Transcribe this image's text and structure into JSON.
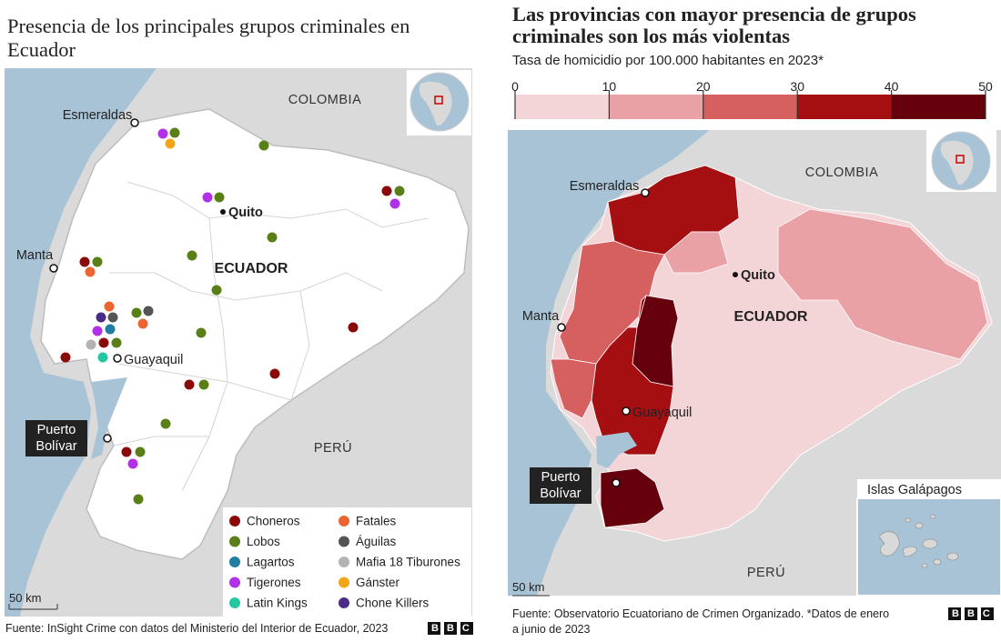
{
  "left_panel": {
    "title": "Presencia de los principales grupos criminales en Ecuador",
    "labels": {
      "colombia": "COLOMBIA",
      "esmeraldas": "Esmeraldas",
      "quito": "Quito",
      "ecuador": "ECUADOR",
      "manta": "Manta",
      "guayaquil": "Guayaquil",
      "puerto_bolivar": "Puerto Bolívar",
      "peru": "PERÚ"
    },
    "legend": [
      {
        "name": "Choneros",
        "color": "#8a0a0a"
      },
      {
        "name": "Lobos",
        "color": "#5b7f17"
      },
      {
        "name": "Lagartos",
        "color": "#1f7ea1"
      },
      {
        "name": "Tigerones",
        "color": "#b230e8"
      },
      {
        "name": "Latin Kings",
        "color": "#25c6a2"
      },
      {
        "name": "Fatales",
        "color": "#ec6430"
      },
      {
        "name": "Águilas",
        "color": "#545454"
      },
      {
        "name": "Mafia 18 Tiburones",
        "color": "#b3b3b3"
      },
      {
        "name": "Gánster",
        "color": "#f2a71b"
      },
      {
        "name": "Chone Killers",
        "color": "#4a2b86"
      }
    ],
    "scale": "50 km",
    "source": "Fuente: InSight Crime con datos del Ministerio del Interior de Ecuador, 2023",
    "logo": "BBC"
  },
  "right_panel": {
    "title": "Las provincias con mayor presencia de grupos criminales son los más violentas",
    "subtitle": "Tasa de homicidio por 100.000 habitantes en 2023*",
    "color_scale": {
      "ticks": [
        0,
        10,
        20,
        30,
        40,
        50
      ],
      "colors": [
        "#f3d5d8",
        "#e9a1a5",
        "#d6605f",
        "#a50f12",
        "#65000c"
      ]
    },
    "labels": {
      "colombia": "COLOMBIA",
      "esmeraldas": "Esmeraldas",
      "quito": "Quito",
      "ecuador": "ECUADOR",
      "manta": "Manta",
      "guayaquil": "Guayaquil",
      "puerto_bolivar": "Puerto Bolívar",
      "peru": "PERÚ",
      "galapagos": "Islas Galápagos"
    },
    "scale": "50 km",
    "source": "Fuente: Observatorio Ecuatoriano de Crimen Organizado. *Datos de enero a junio de 2023",
    "logo": "BBC"
  }
}
